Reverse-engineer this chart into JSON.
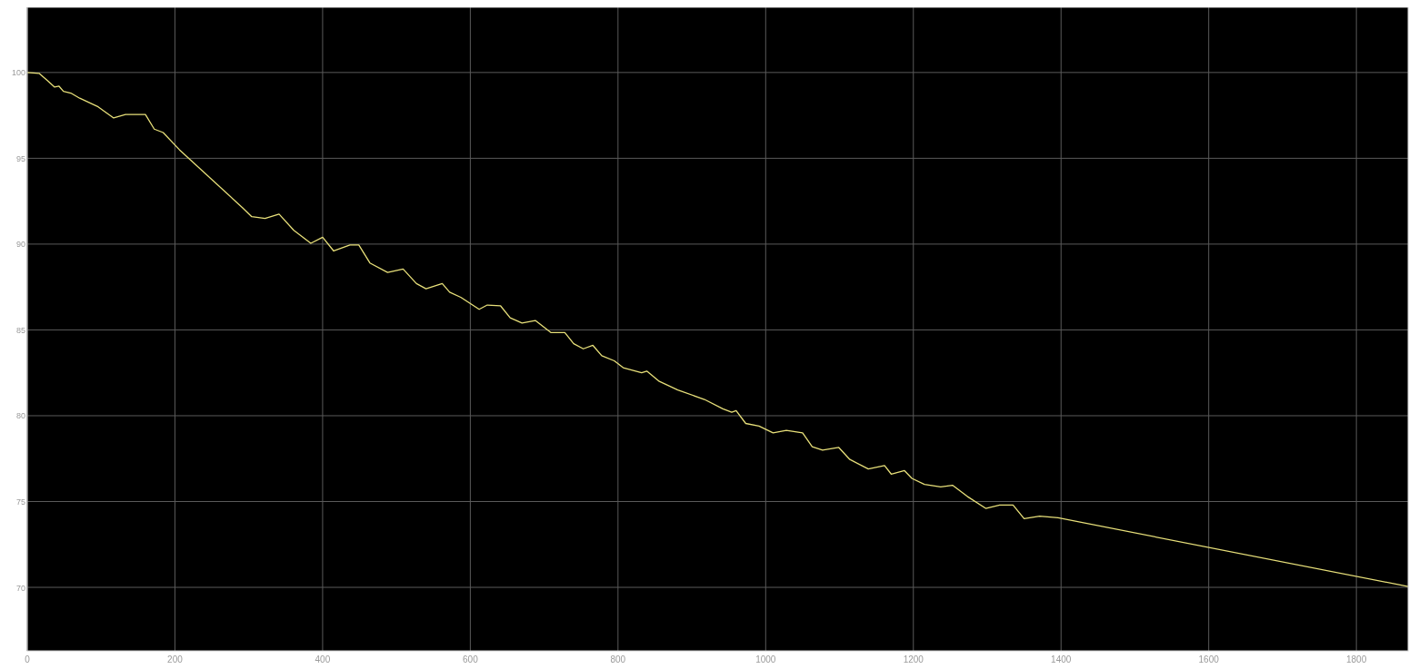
{
  "chart_data": {
    "type": "line",
    "xlim": [
      0,
      1870
    ],
    "ylim": [
      66.3,
      103.8
    ],
    "xticks": [
      0,
      200,
      400,
      600,
      800,
      1000,
      1200,
      1400,
      1600,
      1800
    ],
    "yticks": [
      70,
      75,
      80,
      85,
      90,
      95,
      100
    ],
    "grid": true,
    "series": [
      {
        "color": "#e8e07a",
        "x": [
          0,
          16,
          28,
          37,
          43,
          49,
          59,
          71,
          96,
          117,
          133,
          160,
          172,
          184,
          206,
          292,
          304,
          322,
          341,
          361,
          384,
          400,
          415,
          437,
          449,
          464,
          488,
          509,
          527,
          540,
          562,
          572,
          587,
          612,
          623,
          641,
          654,
          670,
          688,
          709,
          728,
          740,
          753,
          766,
          778,
          795,
          807,
          832,
          839,
          856,
          881,
          917,
          942,
          954,
          960,
          973,
          991,
          1010,
          1028,
          1050,
          1063,
          1077,
          1099,
          1114,
          1139,
          1161,
          1170,
          1188,
          1198,
          1215,
          1237,
          1253,
          1273,
          1298,
          1317,
          1335,
          1350,
          1371,
          1396,
          1870
        ],
        "values": [
          100,
          99.95,
          99.5,
          99.15,
          99.2,
          98.9,
          98.8,
          98.5,
          98.0,
          97.35,
          97.55,
          97.55,
          96.7,
          96.5,
          95.5,
          92.1,
          91.6,
          91.5,
          91.75,
          90.8,
          90.05,
          90.4,
          89.6,
          89.95,
          89.95,
          88.9,
          88.35,
          88.55,
          87.7,
          87.4,
          87.7,
          87.2,
          86.9,
          86.2,
          86.45,
          86.4,
          85.7,
          85.4,
          85.55,
          84.85,
          84.85,
          84.2,
          83.9,
          84.1,
          83.5,
          83.2,
          82.8,
          82.5,
          82.6,
          82.0,
          81.5,
          80.95,
          80.4,
          80.2,
          80.3,
          79.55,
          79.4,
          79.0,
          79.15,
          79.0,
          78.2,
          78.0,
          78.15,
          77.45,
          76.9,
          77.1,
          76.6,
          76.8,
          76.35,
          76.0,
          75.85,
          75.95,
          75.3,
          74.6,
          74.8,
          74.8,
          74.0,
          74.15,
          74.05,
          70.05
        ]
      }
    ]
  }
}
